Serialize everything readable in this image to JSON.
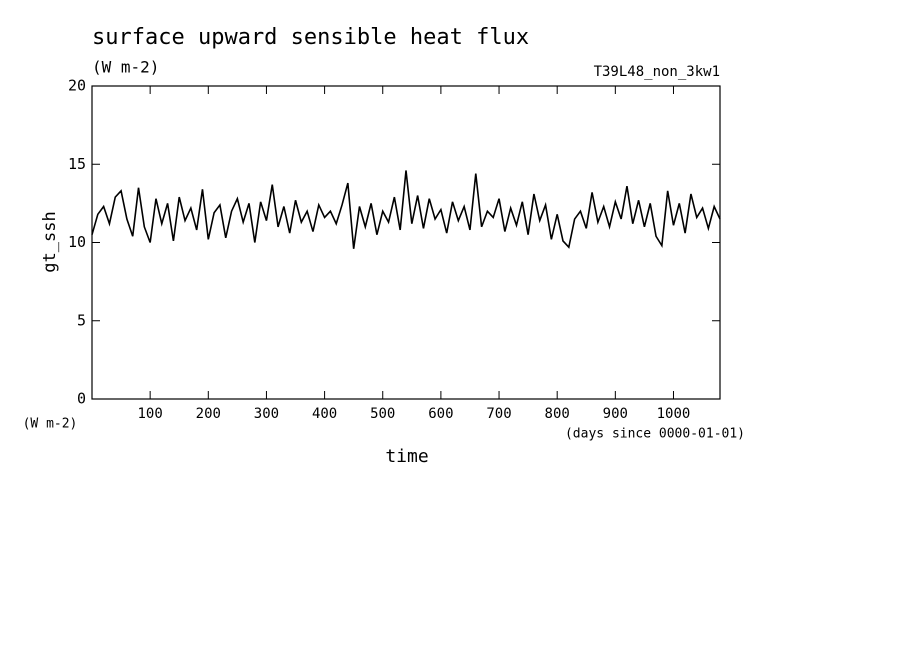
{
  "chart_data": {
    "type": "line",
    "title": "surface upward sensible heat flux",
    "subtitle": "(W m-2)",
    "run_label": "T39L48_non_3kw1",
    "y_label": "gt_ssh",
    "y_unit": "(W m-2)",
    "x_label": "time",
    "x_unit": "(days since 0000-01-01)",
    "xlim": [
      0,
      1080
    ],
    "ylim": [
      0,
      20
    ],
    "xticks": [
      100,
      200,
      300,
      400,
      500,
      600,
      700,
      800,
      900,
      1000
    ],
    "yticks": [
      0,
      5,
      10,
      15,
      20
    ],
    "x": [
      0,
      10,
      20,
      30,
      40,
      50,
      60,
      70,
      80,
      90,
      100,
      110,
      120,
      130,
      140,
      150,
      160,
      170,
      180,
      190,
      200,
      210,
      220,
      230,
      240,
      250,
      260,
      270,
      280,
      290,
      300,
      310,
      320,
      330,
      340,
      350,
      360,
      370,
      380,
      390,
      400,
      410,
      420,
      430,
      440,
      450,
      460,
      470,
      480,
      490,
      500,
      510,
      520,
      530,
      540,
      550,
      560,
      570,
      580,
      590,
      600,
      610,
      620,
      630,
      640,
      650,
      660,
      670,
      680,
      690,
      700,
      710,
      720,
      730,
      740,
      750,
      760,
      770,
      780,
      790,
      800,
      810,
      820,
      830,
      840,
      850,
      860,
      870,
      880,
      890,
      900,
      910,
      920,
      930,
      940,
      950,
      960,
      970,
      980,
      990,
      1000,
      1010,
      1020,
      1030,
      1040,
      1050,
      1060,
      1070,
      1080
    ],
    "series": [
      {
        "color": "#000000",
        "values": [
          10.5,
          11.8,
          12.3,
          11.2,
          12.9,
          13.3,
          11.5,
          10.4,
          13.5,
          11.0,
          10.0,
          12.8,
          11.2,
          12.5,
          10.1,
          12.9,
          11.4,
          12.2,
          10.8,
          13.4,
          10.2,
          11.9,
          12.4,
          10.3,
          12.0,
          12.8,
          11.3,
          12.5,
          10.0,
          12.6,
          11.4,
          13.7,
          11.0,
          12.3,
          10.6,
          12.7,
          11.3,
          12.0,
          10.7,
          12.4,
          11.6,
          12.0,
          11.2,
          12.4,
          13.8,
          9.6,
          12.3,
          11.0,
          12.5,
          10.5,
          12.0,
          11.3,
          12.9,
          10.8,
          14.6,
          11.2,
          13.0,
          10.9,
          12.8,
          11.5,
          12.1,
          10.6,
          12.6,
          11.4,
          12.3,
          10.8,
          14.4,
          11.0,
          12.0,
          11.6,
          12.8,
          10.7,
          12.2,
          11.1,
          12.6,
          10.5,
          13.1,
          11.4,
          12.4,
          10.2,
          11.8,
          10.1,
          9.7,
          11.5,
          12.0,
          10.9,
          13.2,
          11.3,
          12.3,
          11.0,
          12.6,
          11.5,
          13.6,
          11.2,
          12.7,
          11.0,
          12.5,
          10.4,
          9.8,
          13.3,
          11.1,
          12.5,
          10.6,
          13.1,
          11.6,
          12.2,
          10.9,
          12.3,
          11.5
        ]
      }
    ]
  }
}
